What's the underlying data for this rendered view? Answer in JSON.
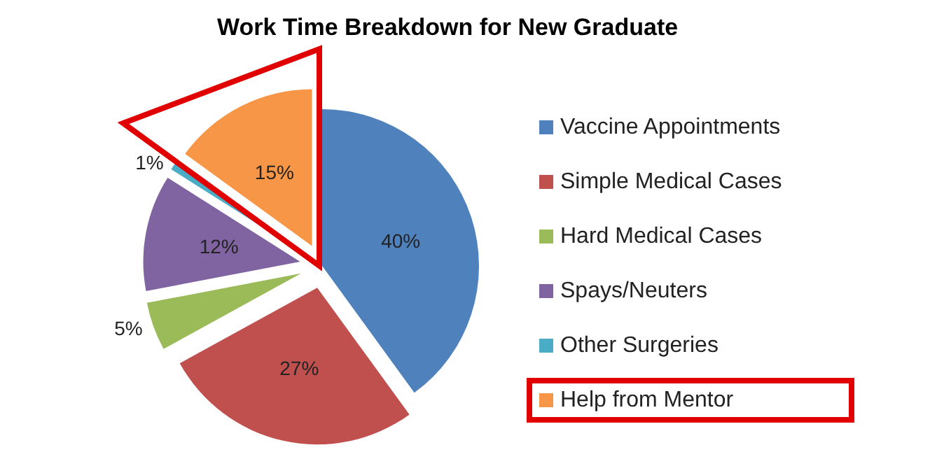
{
  "chart_data": {
    "type": "pie",
    "title": "Work Time Breakdown for New Graduate",
    "categories": [
      "Vaccine Appointments",
      "Simple Medical Cases",
      "Hard Medical Cases",
      "Spays/Neuters",
      "Other Surgeries",
      "Help from Mentor"
    ],
    "values": [
      40,
      27,
      5,
      12,
      1,
      15
    ],
    "colors": [
      "#4f81bd",
      "#c0504d",
      "#9bbb59",
      "#8064a2",
      "#4bacc6",
      "#f79646"
    ],
    "value_labels": [
      "40%",
      "27%",
      "5%",
      "12%",
      "1%",
      "15%"
    ],
    "legend": "right"
  }
}
